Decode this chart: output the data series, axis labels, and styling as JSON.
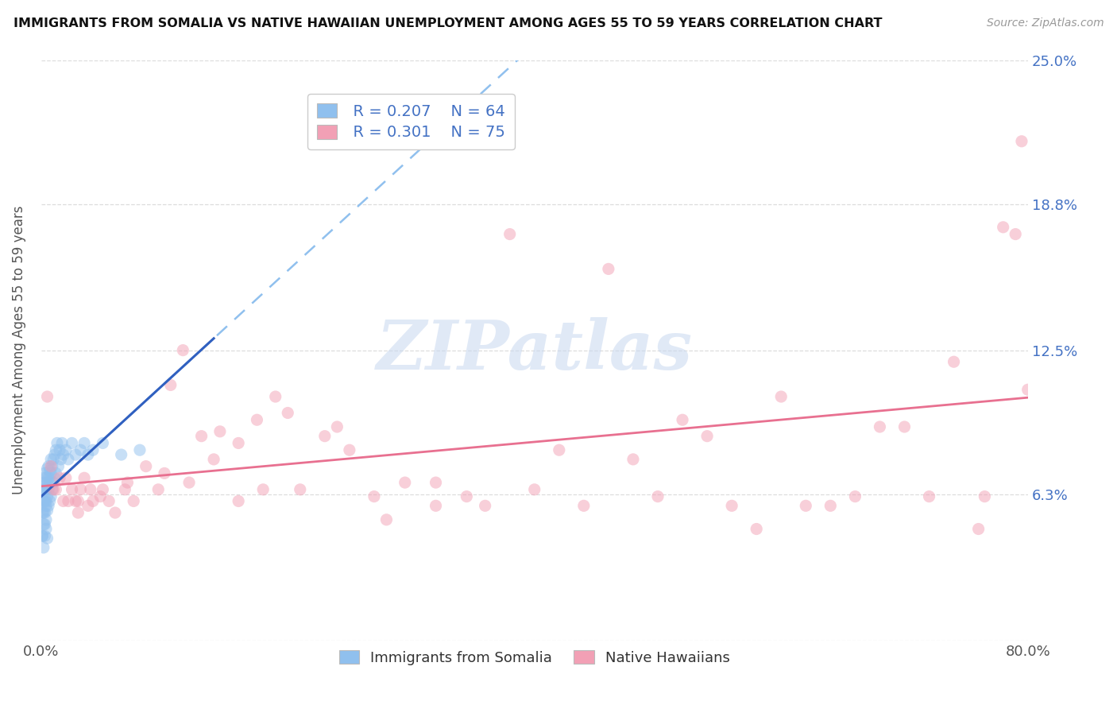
{
  "title": "IMMIGRANTS FROM SOMALIA VS NATIVE HAWAIIAN UNEMPLOYMENT AMONG AGES 55 TO 59 YEARS CORRELATION CHART",
  "source": "Source: ZipAtlas.com",
  "ylabel": "Unemployment Among Ages 55 to 59 years",
  "xlim": [
    0.0,
    0.8
  ],
  "ylim": [
    0.0,
    0.25
  ],
  "yticks": [
    0.0,
    0.063,
    0.125,
    0.188,
    0.25
  ],
  "ytick_labels": [
    "",
    "6.3%",
    "12.5%",
    "18.8%",
    "25.0%"
  ],
  "xtick_left": "0.0%",
  "xtick_right": "80.0%",
  "legend_somalia_R": "0.207",
  "legend_somalia_N": "64",
  "legend_hawaii_R": "0.301",
  "legend_hawaii_N": "75",
  "somalia_color": "#90C0EE",
  "hawaii_color": "#F2A0B5",
  "trend_somalia_solid_color": "#3060C0",
  "trend_somalia_dash_color": "#90C0EE",
  "trend_hawaii_color": "#E87090",
  "r_n_color": "#4472C4",
  "yaxis_label_color": "#555555",
  "watermark": "ZIPatlas",
  "watermark_color": "#C8D8F0",
  "grid_color": "#DDDDDD",
  "title_color": "#111111",
  "source_color": "#999999",
  "somalia_scatter_x": [
    0.001,
    0.001,
    0.001,
    0.001,
    0.001,
    0.002,
    0.002,
    0.002,
    0.002,
    0.002,
    0.002,
    0.003,
    0.003,
    0.003,
    0.003,
    0.003,
    0.003,
    0.003,
    0.004,
    0.004,
    0.004,
    0.004,
    0.004,
    0.004,
    0.005,
    0.005,
    0.005,
    0.005,
    0.005,
    0.006,
    0.006,
    0.006,
    0.006,
    0.007,
    0.007,
    0.007,
    0.008,
    0.008,
    0.008,
    0.009,
    0.009,
    0.01,
    0.01,
    0.011,
    0.011,
    0.012,
    0.012,
    0.013,
    0.014,
    0.015,
    0.016,
    0.017,
    0.018,
    0.02,
    0.022,
    0.025,
    0.028,
    0.032,
    0.035,
    0.038,
    0.042,
    0.05,
    0.065,
    0.08
  ],
  "somalia_scatter_y": [
    0.045,
    0.055,
    0.06,
    0.065,
    0.045,
    0.055,
    0.06,
    0.065,
    0.07,
    0.05,
    0.04,
    0.06,
    0.065,
    0.068,
    0.072,
    0.055,
    0.05,
    0.045,
    0.06,
    0.065,
    0.07,
    0.058,
    0.052,
    0.048,
    0.062,
    0.068,
    0.074,
    0.056,
    0.044,
    0.065,
    0.07,
    0.075,
    0.058,
    0.068,
    0.073,
    0.06,
    0.072,
    0.078,
    0.062,
    0.075,
    0.065,
    0.078,
    0.068,
    0.08,
    0.07,
    0.082,
    0.072,
    0.085,
    0.075,
    0.082,
    0.078,
    0.085,
    0.08,
    0.082,
    0.078,
    0.085,
    0.08,
    0.082,
    0.085,
    0.08,
    0.082,
    0.085,
    0.08,
    0.082
  ],
  "hawaii_scatter_x": [
    0.005,
    0.008,
    0.01,
    0.012,
    0.015,
    0.018,
    0.02,
    0.022,
    0.025,
    0.028,
    0.03,
    0.032,
    0.035,
    0.038,
    0.04,
    0.042,
    0.048,
    0.055,
    0.06,
    0.068,
    0.075,
    0.085,
    0.095,
    0.105,
    0.115,
    0.13,
    0.145,
    0.16,
    0.175,
    0.19,
    0.21,
    0.23,
    0.25,
    0.27,
    0.295,
    0.32,
    0.345,
    0.38,
    0.42,
    0.46,
    0.5,
    0.54,
    0.58,
    0.62,
    0.66,
    0.7,
    0.74,
    0.765,
    0.78,
    0.795,
    0.03,
    0.05,
    0.07,
    0.1,
    0.12,
    0.14,
    0.16,
    0.18,
    0.2,
    0.24,
    0.28,
    0.32,
    0.36,
    0.4,
    0.44,
    0.48,
    0.52,
    0.56,
    0.6,
    0.64,
    0.68,
    0.72,
    0.76,
    0.79,
    0.8
  ],
  "hawaii_scatter_y": [
    0.105,
    0.075,
    0.065,
    0.065,
    0.07,
    0.06,
    0.07,
    0.06,
    0.065,
    0.06,
    0.055,
    0.065,
    0.07,
    0.058,
    0.065,
    0.06,
    0.062,
    0.06,
    0.055,
    0.065,
    0.06,
    0.075,
    0.065,
    0.11,
    0.125,
    0.088,
    0.09,
    0.085,
    0.095,
    0.105,
    0.065,
    0.088,
    0.082,
    0.062,
    0.068,
    0.058,
    0.062,
    0.175,
    0.082,
    0.16,
    0.062,
    0.088,
    0.048,
    0.058,
    0.062,
    0.092,
    0.12,
    0.062,
    0.178,
    0.215,
    0.06,
    0.065,
    0.068,
    0.072,
    0.068,
    0.078,
    0.06,
    0.065,
    0.098,
    0.092,
    0.052,
    0.068,
    0.058,
    0.065,
    0.058,
    0.078,
    0.095,
    0.058,
    0.105,
    0.058,
    0.092,
    0.062,
    0.048,
    0.175,
    0.108
  ]
}
